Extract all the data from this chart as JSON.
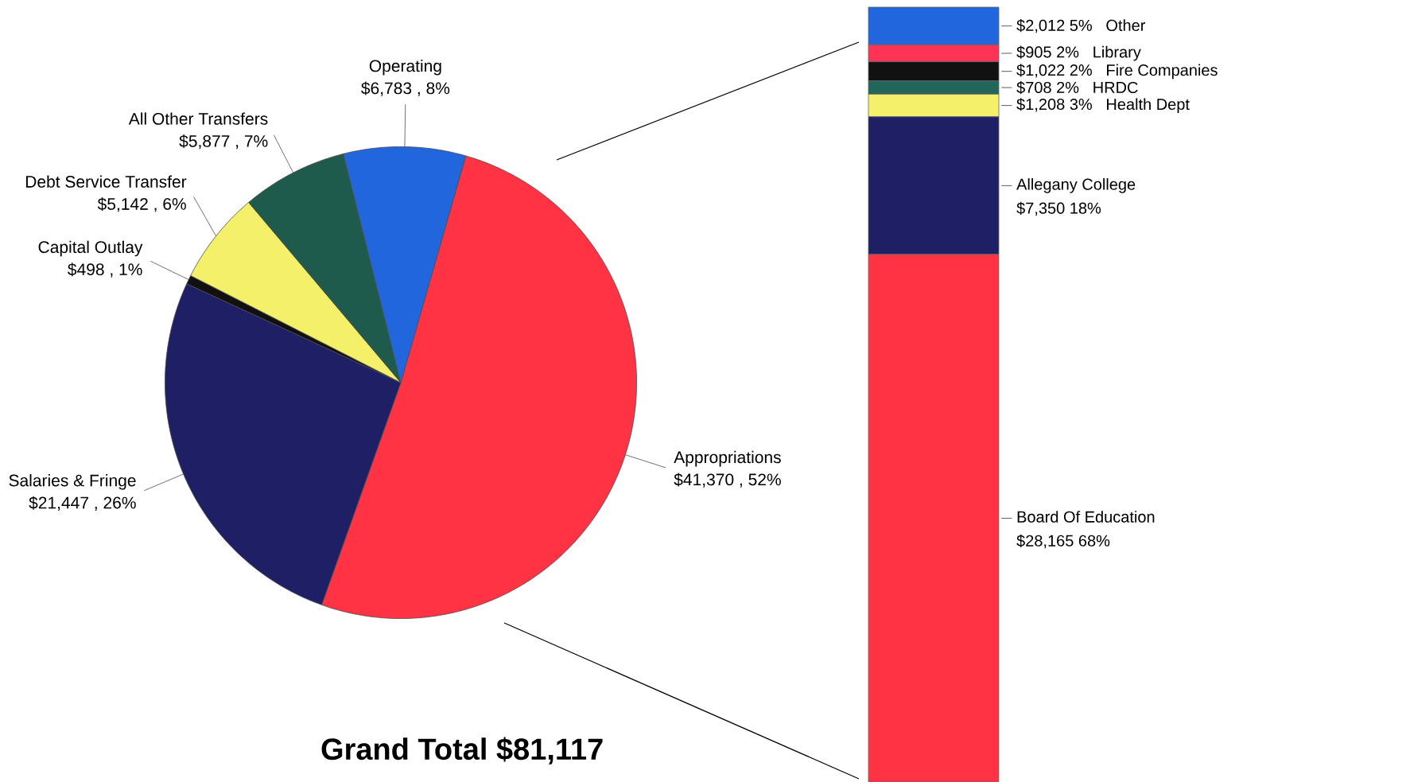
{
  "chart_data": [
    {
      "type": "pie",
      "title": "Grand Total $81,117",
      "categories": [
        "Appropriations",
        "Salaries & Fringe",
        "Capital Outlay",
        "Debt Service Transfer",
        "All Other Transfers",
        "Operating"
      ],
      "values": [
        41370,
        21447,
        498,
        5142,
        5877,
        6783
      ],
      "value_labels": [
        "$41,370 , 52%",
        "$21,447 , 26%",
        "$498 , 1%",
        "$5,142 , 6%",
        "$5,877 , 7%",
        "$6,783 , 8%"
      ],
      "colors": [
        "#ff3344",
        "#1f1f66",
        "#111111",
        "#f5f06a",
        "#1f5b4c",
        "#2266dd"
      ]
    },
    {
      "type": "bar",
      "stacked": true,
      "categories": [
        null
      ],
      "series": [
        {
          "name": "Board Of Education",
          "color": "#ff3344",
          "values": [
            28165
          ],
          "value_labels": [
            "$28,165 68%"
          ]
        },
        {
          "name": "Allegany College",
          "color": "#1f1f66",
          "values": [
            7350
          ],
          "value_labels": [
            "$7,350 18%"
          ]
        },
        {
          "name": "Health Dept",
          "color": "#f5f06a",
          "values": [
            1208
          ],
          "value_labels": [
            "$1,208  3%"
          ]
        },
        {
          "name": "HRDC",
          "color": "#22665a",
          "values": [
            708
          ],
          "value_labels": [
            "$708  2%"
          ]
        },
        {
          "name": "Fire Companies",
          "color": "#111111",
          "values": [
            1022
          ],
          "value_labels": [
            "$1,022  2%"
          ]
        },
        {
          "name": "Library",
          "color": "#ff3355",
          "values": [
            905
          ],
          "value_labels": [
            "$905  2%"
          ]
        },
        {
          "name": "Other",
          "color": "#2266dd",
          "values": [
            2012
          ],
          "value_labels": [
            "$2,012  5%"
          ]
        }
      ]
    }
  ]
}
